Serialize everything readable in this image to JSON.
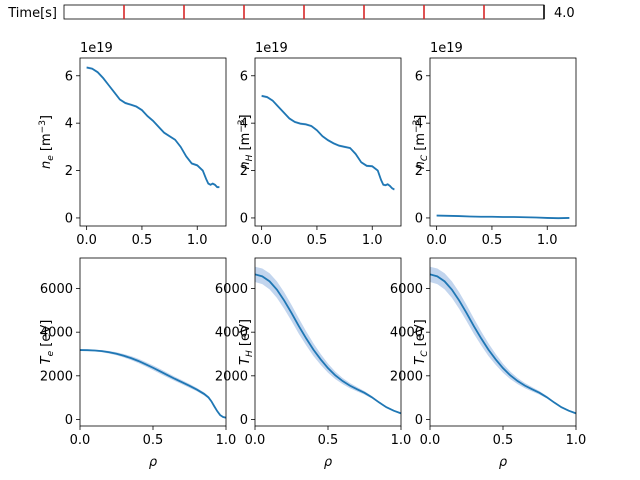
{
  "time_slider": {
    "label": "Time[s]",
    "value_text": "4.0",
    "t_min": 0.0,
    "t_max": 4.0,
    "marks": [
      0.5,
      1.0,
      1.5,
      2.0,
      2.5,
      3.0,
      3.5,
      4.0
    ],
    "mark_color": "#d62728"
  },
  "colors": {
    "line": "#1f77b4",
    "band": "#aec7e8"
  },
  "chart_data": [
    {
      "type": "line",
      "panel": "top-left",
      "ylabel": "n_e [m^-3]",
      "ylabel_main": "n",
      "ylabel_sub": "e",
      "ylabel_unit": "[m",
      "ylabel_exp": "−3",
      "ylabel_close": "]",
      "offset_text": "1e19",
      "xlim": [
        -0.06,
        1.26
      ],
      "ylim": [
        -0.34,
        6.75
      ],
      "xticks": [
        0.0,
        0.5,
        1.0
      ],
      "xticklabels": [
        "0.0",
        "0.5",
        "1.0"
      ],
      "yticks": [
        0,
        2,
        4,
        6
      ],
      "yticklabels": [
        "0",
        "2",
        "4",
        "6"
      ],
      "x": [
        0.0,
        0.05,
        0.1,
        0.15,
        0.2,
        0.25,
        0.3,
        0.35,
        0.4,
        0.45,
        0.5,
        0.55,
        0.6,
        0.65,
        0.7,
        0.75,
        0.8,
        0.85,
        0.9,
        0.95,
        1.0,
        1.05,
        1.08,
        1.1,
        1.12,
        1.14,
        1.16,
        1.18,
        1.2
      ],
      "y": [
        6.35,
        6.3,
        6.15,
        5.9,
        5.6,
        5.3,
        5.0,
        4.85,
        4.78,
        4.7,
        4.55,
        4.3,
        4.1,
        3.85,
        3.6,
        3.45,
        3.3,
        3.0,
        2.6,
        2.3,
        2.22,
        2.0,
        1.65,
        1.45,
        1.4,
        1.45,
        1.4,
        1.3,
        1.3
      ],
      "band": 0.05
    },
    {
      "type": "line",
      "panel": "top-middle",
      "ylabel": "n_H [m^-3]",
      "ylabel_main": "n",
      "ylabel_sub": "H",
      "ylabel_unit": "[m",
      "ylabel_exp": "−3",
      "ylabel_close": "]",
      "offset_text": "1e19",
      "xlim": [
        -0.06,
        1.26
      ],
      "ylim": [
        -0.34,
        6.75
      ],
      "xticks": [
        0.0,
        0.5,
        1.0
      ],
      "xticklabels": [
        "0.0",
        "0.5",
        "1.0"
      ],
      "yticks": [
        0,
        2,
        4,
        6
      ],
      "yticklabels": [
        "0",
        "2",
        "4",
        "6"
      ],
      "x": [
        0.0,
        0.05,
        0.1,
        0.15,
        0.2,
        0.25,
        0.3,
        0.35,
        0.4,
        0.45,
        0.5,
        0.55,
        0.6,
        0.65,
        0.7,
        0.75,
        0.8,
        0.85,
        0.9,
        0.95,
        1.0,
        1.05,
        1.08,
        1.1,
        1.12,
        1.14,
        1.16,
        1.18,
        1.2
      ],
      "y": [
        5.15,
        5.1,
        4.95,
        4.7,
        4.45,
        4.2,
        4.05,
        3.98,
        3.95,
        3.88,
        3.7,
        3.45,
        3.28,
        3.15,
        3.05,
        3.0,
        2.95,
        2.7,
        2.35,
        2.2,
        2.18,
        2.0,
        1.6,
        1.4,
        1.38,
        1.42,
        1.35,
        1.25,
        1.2
      ],
      "band": 0.05
    },
    {
      "type": "line",
      "panel": "top-right",
      "ylabel": "n_C [m^-3]",
      "ylabel_main": "n",
      "ylabel_sub": "C",
      "ylabel_unit": "[m",
      "ylabel_exp": "−3",
      "ylabel_close": "]",
      "offset_text": "1e19",
      "xlim": [
        -0.06,
        1.26
      ],
      "ylim": [
        -0.34,
        6.75
      ],
      "xticks": [
        0.0,
        0.5,
        1.0
      ],
      "xticklabels": [
        "0.0",
        "0.5",
        "1.0"
      ],
      "yticks": [
        0,
        2,
        4,
        6
      ],
      "yticklabels": [
        "0",
        "2",
        "4",
        "6"
      ],
      "x": [
        0.0,
        0.1,
        0.2,
        0.3,
        0.4,
        0.5,
        0.6,
        0.7,
        0.8,
        0.9,
        1.0,
        1.1,
        1.2
      ],
      "y": [
        0.1,
        0.09,
        0.08,
        0.06,
        0.05,
        0.05,
        0.04,
        0.04,
        0.03,
        0.02,
        0.0,
        -0.01,
        0.0
      ],
      "band": 0.02
    },
    {
      "type": "line",
      "panel": "bottom-left",
      "ylabel": "T_e [eV]",
      "ylabel_main": "T",
      "ylabel_sub": "e",
      "ylabel_unit": "[eV]",
      "xlabel": "ρ",
      "xlim": [
        0.0,
        1.0
      ],
      "ylim": [
        -300,
        7400
      ],
      "xticks": [
        0.0,
        0.5,
        1.0
      ],
      "xticklabels": [
        "0.0",
        "0.5",
        "1.0"
      ],
      "yticks": [
        0,
        2000,
        4000,
        6000
      ],
      "yticklabels": [
        "0",
        "2000",
        "4000",
        "6000"
      ],
      "x": [
        0.0,
        0.05,
        0.1,
        0.15,
        0.2,
        0.25,
        0.3,
        0.35,
        0.4,
        0.45,
        0.5,
        0.55,
        0.6,
        0.65,
        0.7,
        0.75,
        0.8,
        0.85,
        0.88,
        0.9,
        0.92,
        0.94,
        0.96,
        0.98,
        1.0
      ],
      "y": [
        3180,
        3175,
        3160,
        3130,
        3080,
        3010,
        2920,
        2810,
        2680,
        2530,
        2370,
        2200,
        2030,
        1860,
        1700,
        1540,
        1370,
        1170,
        1010,
        830,
        600,
        380,
        200,
        110,
        80
      ],
      "band": [
        40,
        40,
        40,
        50,
        60,
        70,
        80,
        90,
        100,
        105,
        110,
        110,
        105,
        100,
        95,
        90,
        80,
        70,
        60,
        50,
        40,
        30,
        20,
        15,
        10
      ]
    },
    {
      "type": "line",
      "panel": "bottom-middle",
      "ylabel": "T_H [eV]",
      "ylabel_main": "T",
      "ylabel_sub": "H",
      "ylabel_unit": "[eV]",
      "xlabel": "ρ",
      "xlim": [
        0.0,
        1.0
      ],
      "ylim": [
        -300,
        7400
      ],
      "xticks": [
        0.0,
        0.5,
        1.0
      ],
      "xticklabels": [
        "0.0",
        "0.5",
        "1.0"
      ],
      "yticks": [
        0,
        2000,
        4000,
        6000
      ],
      "yticklabels": [
        "0",
        "2000",
        "4000",
        "6000"
      ],
      "x": [
        0.0,
        0.05,
        0.1,
        0.15,
        0.2,
        0.25,
        0.3,
        0.35,
        0.4,
        0.45,
        0.5,
        0.55,
        0.6,
        0.65,
        0.7,
        0.75,
        0.8,
        0.85,
        0.9,
        0.95,
        1.0
      ],
      "y": [
        6650,
        6560,
        6330,
        5950,
        5450,
        4880,
        4280,
        3720,
        3200,
        2750,
        2350,
        2020,
        1760,
        1550,
        1380,
        1220,
        1020,
        780,
        560,
        400,
        280
      ],
      "band": [
        350,
        360,
        370,
        380,
        380,
        370,
        350,
        320,
        290,
        250,
        210,
        170,
        140,
        120,
        100,
        80,
        60,
        45,
        30,
        20,
        10
      ]
    },
    {
      "type": "line",
      "panel": "bottom-right",
      "ylabel": "T_C [eV]",
      "ylabel_main": "T",
      "ylabel_sub": "C",
      "ylabel_unit": "[eV]",
      "xlabel": "ρ",
      "xlim": [
        0.0,
        1.0
      ],
      "ylim": [
        -300,
        7400
      ],
      "xticks": [
        0.0,
        0.5,
        1.0
      ],
      "xticklabels": [
        "0.0",
        "0.5",
        "1.0"
      ],
      "yticks": [
        0,
        2000,
        4000,
        6000
      ],
      "yticklabels": [
        "0",
        "2000",
        "4000",
        "6000"
      ],
      "x": [
        0.0,
        0.05,
        0.1,
        0.15,
        0.2,
        0.25,
        0.3,
        0.35,
        0.4,
        0.45,
        0.5,
        0.55,
        0.6,
        0.65,
        0.7,
        0.75,
        0.8,
        0.85,
        0.9,
        0.95,
        1.0
      ],
      "y": [
        6650,
        6560,
        6330,
        5950,
        5450,
        4880,
        4280,
        3720,
        3200,
        2750,
        2350,
        2020,
        1760,
        1550,
        1380,
        1220,
        1020,
        780,
        560,
        400,
        280
      ],
      "band": [
        350,
        360,
        370,
        380,
        380,
        370,
        350,
        320,
        290,
        250,
        210,
        170,
        140,
        120,
        100,
        80,
        60,
        45,
        30,
        20,
        10
      ]
    }
  ]
}
